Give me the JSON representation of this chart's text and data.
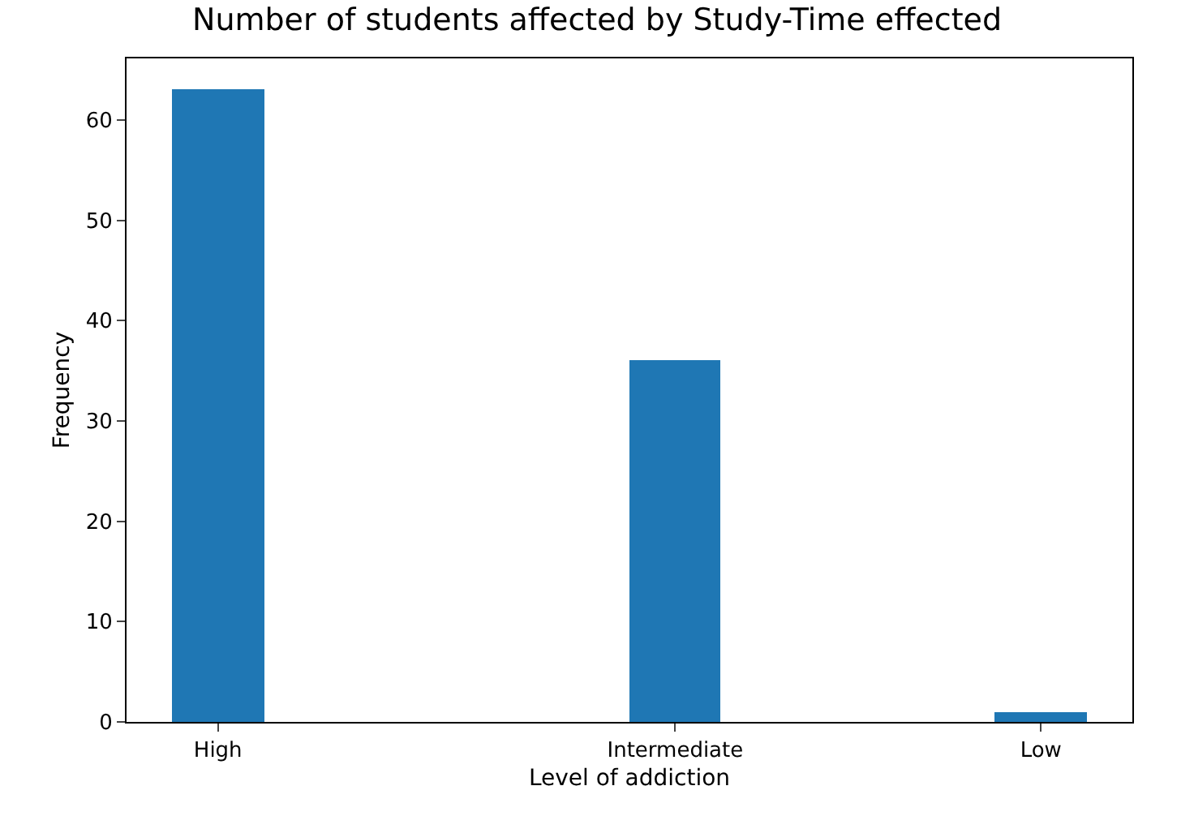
{
  "chart_data": {
    "type": "bar",
    "title": "Number of students affected by Study-Time effected",
    "xlabel": "Level of addiction",
    "ylabel": "Frequency",
    "categories": [
      "High",
      null,
      null,
      null,
      null,
      "Intermediate",
      null,
      null,
      null,
      "Low"
    ],
    "values": [
      63,
      0,
      0,
      0,
      0,
      36,
      0,
      0,
      0,
      1
    ],
    "color": "#1f77b4",
    "ylim": [
      0,
      66.15
    ],
    "yticks": [
      0,
      10,
      20,
      30,
      40,
      50,
      60
    ]
  }
}
